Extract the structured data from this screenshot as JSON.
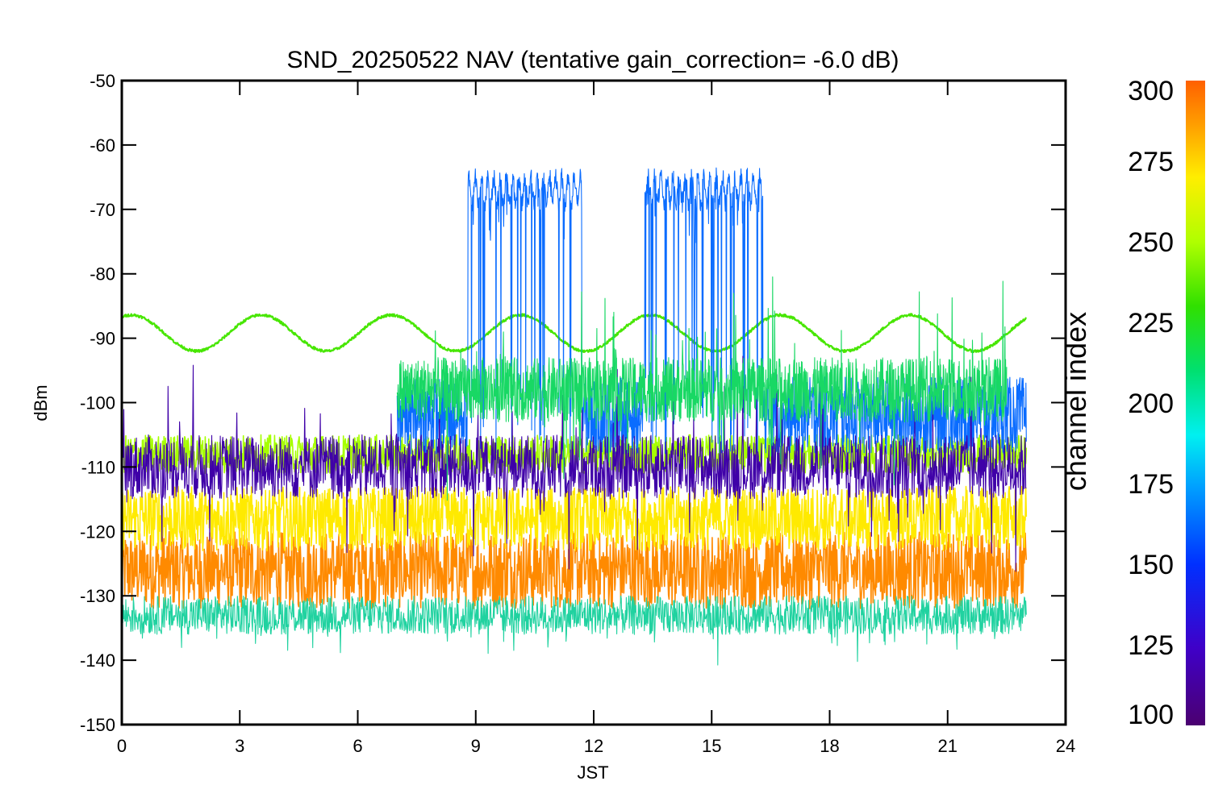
{
  "chart_data": {
    "type": "line",
    "title": "SND_20250522 NAV (tentative gain_correction= -6.0 dB)",
    "xlabel": "JST",
    "ylabel": "dBm",
    "xlim": [
      0,
      24
    ],
    "ylim": [
      -150,
      -50
    ],
    "x_ticks": [
      0,
      3,
      6,
      9,
      12,
      15,
      18,
      21,
      24
    ],
    "y_ticks": [
      -50,
      -60,
      -70,
      -80,
      -90,
      -100,
      -110,
      -120,
      -130,
      -140,
      -150
    ],
    "colorbar": {
      "title": "channel index",
      "range": [
        100,
        300
      ],
      "ticks": [
        300,
        275,
        250,
        225,
        200,
        175,
        150,
        125,
        100
      ],
      "colormap": "rainbow"
    },
    "series": [
      {
        "color": "#ff8a00",
        "channel_index": 290,
        "kind": "noise_band",
        "t_range": [
          0,
          23
        ],
        "center_dbm": -126,
        "spread_dbm": 6
      },
      {
        "color": "#ffea00",
        "channel_index": 272,
        "kind": "noise_band",
        "t_range": [
          0,
          23
        ],
        "center_dbm": -118,
        "spread_dbm": 5
      },
      {
        "color": "#a6ff00",
        "channel_index": 255,
        "kind": "noise_band",
        "t_range": [
          0,
          23
        ],
        "center_dbm": -108,
        "spread_dbm": 3
      },
      {
        "color": "#20d2a0",
        "channel_index": 200,
        "kind": "floor_noise",
        "t_range": [
          0,
          23
        ],
        "center_dbm": -133,
        "spread_dbm": 3
      },
      {
        "color": "#47e600",
        "channel_index": 240,
        "kind": "sine",
        "t_range": [
          0,
          23
        ],
        "mean_dbm": -89.2,
        "amplitude_dbm": 2.8,
        "period_h": 3.3,
        "start_dbm": -91
      },
      {
        "color": "#0a6cff",
        "channel_index": 150,
        "kind": "burst",
        "t_range": [
          7,
          23
        ],
        "base_dbm": -102,
        "windows": [
          {
            "start": 8.8,
            "end": 11.7,
            "level_dbm": -67
          },
          {
            "start": 13.3,
            "end": 16.3,
            "level_dbm": -67
          }
        ]
      },
      {
        "color": "#3f00a8",
        "channel_index": 110,
        "kind": "spikes",
        "t_range": [
          0,
          23
        ],
        "base_dbm": -110
      },
      {
        "color": "#18d864",
        "channel_index": 215,
        "kind": "spikes",
        "t_range": [
          7,
          22.5
        ],
        "base_dbm": -98
      }
    ]
  }
}
